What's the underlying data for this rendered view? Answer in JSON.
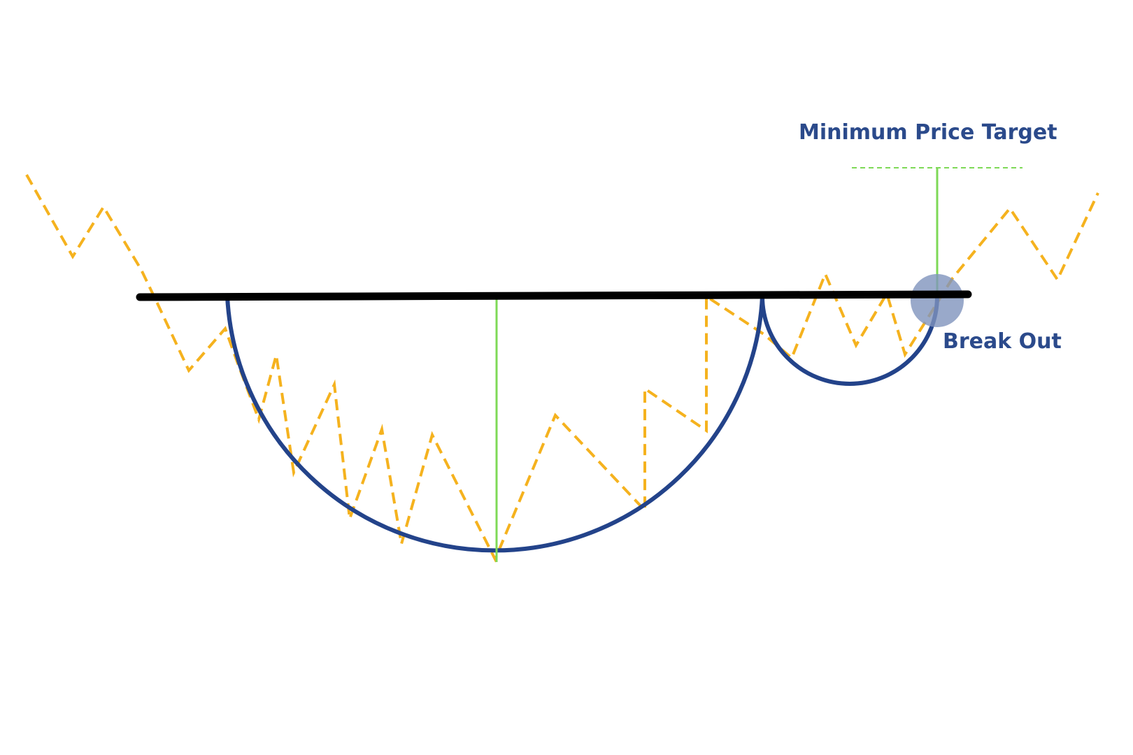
{
  "labels": {
    "target": "Minimum Price Target",
    "breakout": "Break Out"
  },
  "colors": {
    "background": "#ffffff",
    "price_line": "#f5b21e",
    "cup_and_handle": "#23438a",
    "resistance": "#000000",
    "target_marker": "#7ed957",
    "breakout_marker": "#7f93bd",
    "label_text": "#2b4a8b"
  }
}
